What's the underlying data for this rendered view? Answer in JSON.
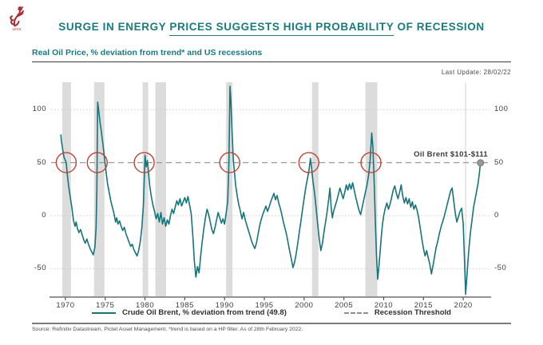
{
  "header": {
    "logo_name": "pictet-lion-crest",
    "logo_year": "1805",
    "title_pre": "SURGE IN ENERGY ",
    "title_underline": "PRICES SUGGESTS HIGH PROBABILITY",
    "title_post": " OF RECESSION"
  },
  "subtitle": "Real Oil Price, % deviation from trend* and US recessions",
  "last_update": "Last Update: 28/02/22",
  "annotation": "Oil Brent $101-$111",
  "legend": [
    {
      "swatch": "teal-solid-line",
      "label": "Crude Oil Brent, % deviation from trend (49.8)"
    },
    {
      "swatch": "gray-dashed-line",
      "label": "Recession Threshold"
    }
  ],
  "source": "Source: Refinitiv Datastream, Pictet Asset Management. *trend is based on a HP filter. As of 28th February 2022.",
  "colors": {
    "title_teal": "#1a7a7e",
    "line_teal": "#17747a",
    "circle_red": "#bd4237",
    "recession_band": "#dcdcdc",
    "threshold_gray": "#9a9a9a",
    "gridline_gray": "#cccccc",
    "axis_gray": "#555555",
    "end_dot_gray": "#999999",
    "logo_red": "#a8323a"
  },
  "chart_data": {
    "type": "line",
    "title": "Real Oil Price, % deviation from trend* and US recessions",
    "xlabel": "",
    "ylabel": "% deviation from trend",
    "grid": "horizontal-dotted",
    "legend_position": "bottom-center",
    "xlim": [
      1968.2,
      2023.3
    ],
    "ylim": [
      -76.8,
      128
    ],
    "y_ticks": [
      100,
      50,
      0,
      -50
    ],
    "x_ticks": [
      1970,
      1975,
      1980,
      1985,
      1990,
      1995,
      2000,
      2005,
      2010,
      2015,
      2020
    ],
    "threshold_value": 50,
    "marker_line_year": 2020.3,
    "recessions": [
      [
        1969.6,
        1970.7
      ],
      [
        1973.6,
        1974.9
      ],
      [
        1979.7,
        1980.4
      ],
      [
        1981.3,
        1982.65
      ],
      [
        1990.2,
        1991.0
      ],
      [
        2001.0,
        2001.8
      ],
      [
        2007.7,
        2009.2
      ]
    ],
    "circled_points": {
      "value": 50,
      "years": [
        1970.1,
        1974.0,
        1979.9,
        1990.65,
        2000.6,
        2008.4
      ]
    },
    "last_point": {
      "year": 2022.17,
      "value": 49.8
    },
    "series": [
      {
        "name": "Crude Oil Brent, % deviation from trend",
        "points": [
          [
            1969.42,
            76
          ],
          [
            1969.5,
            70
          ],
          [
            1969.67,
            62
          ],
          [
            1969.83,
            55
          ],
          [
            1970.0,
            52
          ],
          [
            1970.1,
            50
          ],
          [
            1970.25,
            38
          ],
          [
            1970.4,
            28
          ],
          [
            1970.6,
            18
          ],
          [
            1970.8,
            8
          ],
          [
            1971.0,
            -4
          ],
          [
            1971.2,
            -10
          ],
          [
            1971.35,
            -6
          ],
          [
            1971.5,
            -12
          ],
          [
            1971.7,
            -16
          ],
          [
            1971.9,
            -13
          ],
          [
            1972.1,
            -18
          ],
          [
            1972.3,
            -23
          ],
          [
            1972.5,
            -26
          ],
          [
            1972.7,
            -22
          ],
          [
            1972.9,
            -27
          ],
          [
            1973.1,
            -31
          ],
          [
            1973.3,
            -34
          ],
          [
            1973.5,
            -37
          ],
          [
            1973.7,
            -30
          ],
          [
            1973.85,
            -12
          ],
          [
            1973.95,
            25
          ],
          [
            1974.05,
            107
          ],
          [
            1974.2,
            98
          ],
          [
            1974.35,
            88
          ],
          [
            1974.5,
            80
          ],
          [
            1974.7,
            68
          ],
          [
            1974.9,
            55
          ],
          [
            1975.1,
            42
          ],
          [
            1975.3,
            30
          ],
          [
            1975.5,
            22
          ],
          [
            1975.7,
            14
          ],
          [
            1975.9,
            8
          ],
          [
            1976.1,
            2
          ],
          [
            1976.3,
            -6
          ],
          [
            1976.45,
            -2
          ],
          [
            1976.6,
            -8
          ],
          [
            1976.8,
            -5
          ],
          [
            1977.0,
            -10
          ],
          [
            1977.2,
            -14
          ],
          [
            1977.4,
            -11
          ],
          [
            1977.6,
            -17
          ],
          [
            1977.8,
            -21
          ],
          [
            1978.0,
            -25
          ],
          [
            1978.2,
            -29
          ],
          [
            1978.4,
            -27
          ],
          [
            1978.6,
            -32
          ],
          [
            1978.8,
            -35
          ],
          [
            1979.0,
            -38
          ],
          [
            1979.2,
            -33
          ],
          [
            1979.4,
            -25
          ],
          [
            1979.6,
            -12
          ],
          [
            1979.8,
            10
          ],
          [
            1980.0,
            57
          ],
          [
            1980.15,
            46
          ],
          [
            1980.3,
            52
          ],
          [
            1980.45,
            40
          ],
          [
            1980.6,
            28
          ],
          [
            1980.8,
            18
          ],
          [
            1981.0,
            10
          ],
          [
            1981.2,
            4
          ],
          [
            1981.4,
            -3
          ],
          [
            1981.6,
            2
          ],
          [
            1981.8,
            -6
          ],
          [
            1982.0,
            3
          ],
          [
            1982.2,
            -8
          ],
          [
            1982.4,
            -2
          ],
          [
            1982.6,
            -10
          ],
          [
            1982.8,
            -4
          ],
          [
            1983.0,
            -8
          ],
          [
            1983.2,
            0
          ],
          [
            1983.4,
            6
          ],
          [
            1983.6,
            2
          ],
          [
            1983.8,
            8
          ],
          [
            1984.0,
            14
          ],
          [
            1984.2,
            10
          ],
          [
            1984.4,
            16
          ],
          [
            1984.6,
            9
          ],
          [
            1984.8,
            13
          ],
          [
            1985.0,
            17
          ],
          [
            1985.2,
            12
          ],
          [
            1985.4,
            18
          ],
          [
            1985.6,
            10
          ],
          [
            1985.8,
            2
          ],
          [
            1986.0,
            -18
          ],
          [
            1986.2,
            -42
          ],
          [
            1986.4,
            -58
          ],
          [
            1986.6,
            -48
          ],
          [
            1986.8,
            -54
          ],
          [
            1987.0,
            -38
          ],
          [
            1987.2,
            -24
          ],
          [
            1987.4,
            -12
          ],
          [
            1987.6,
            -2
          ],
          [
            1987.8,
            6
          ],
          [
            1988.0,
            1
          ],
          [
            1988.2,
            -6
          ],
          [
            1988.4,
            -13
          ],
          [
            1988.6,
            -17
          ],
          [
            1988.8,
            -11
          ],
          [
            1989.0,
            -4
          ],
          [
            1989.2,
            3
          ],
          [
            1989.4,
            -2
          ],
          [
            1989.6,
            -7
          ],
          [
            1989.8,
            -3
          ],
          [
            1990.0,
            -8
          ],
          [
            1990.2,
            2
          ],
          [
            1990.4,
            14
          ],
          [
            1990.55,
            50
          ],
          [
            1990.68,
            122
          ],
          [
            1990.8,
            108
          ],
          [
            1990.95,
            78
          ],
          [
            1991.1,
            52
          ],
          [
            1991.25,
            40
          ],
          [
            1991.4,
            28
          ],
          [
            1991.6,
            18
          ],
          [
            1991.8,
            10
          ],
          [
            1992.0,
            4
          ],
          [
            1992.2,
            -3
          ],
          [
            1992.4,
            3
          ],
          [
            1992.6,
            -4
          ],
          [
            1992.8,
            -9
          ],
          [
            1993.0,
            -14
          ],
          [
            1993.2,
            -19
          ],
          [
            1993.4,
            -24
          ],
          [
            1993.6,
            -28
          ],
          [
            1993.8,
            -31
          ],
          [
            1994.0,
            -26
          ],
          [
            1994.2,
            -18
          ],
          [
            1994.4,
            -10
          ],
          [
            1994.6,
            -4
          ],
          [
            1994.8,
            1
          ],
          [
            1995.0,
            5
          ],
          [
            1995.2,
            9
          ],
          [
            1995.4,
            4
          ],
          [
            1995.6,
            8
          ],
          [
            1995.8,
            13
          ],
          [
            1996.0,
            17
          ],
          [
            1996.2,
            21
          ],
          [
            1996.4,
            15
          ],
          [
            1996.6,
            19
          ],
          [
            1996.8,
            12
          ],
          [
            1997.0,
            7
          ],
          [
            1997.2,
            1
          ],
          [
            1997.4,
            -6
          ],
          [
            1997.6,
            -12
          ],
          [
            1997.8,
            -18
          ],
          [
            1998.0,
            -26
          ],
          [
            1998.2,
            -34
          ],
          [
            1998.4,
            -41
          ],
          [
            1998.6,
            -49
          ],
          [
            1998.8,
            -44
          ],
          [
            1999.0,
            -36
          ],
          [
            1999.2,
            -26
          ],
          [
            1999.4,
            -15
          ],
          [
            1999.6,
            -5
          ],
          [
            1999.8,
            6
          ],
          [
            2000.0,
            16
          ],
          [
            2000.2,
            26
          ],
          [
            2000.4,
            34
          ],
          [
            2000.6,
            42
          ],
          [
            2000.8,
            54
          ],
          [
            2000.95,
            44
          ],
          [
            2001.1,
            33
          ],
          [
            2001.3,
            22
          ],
          [
            2001.5,
            8
          ],
          [
            2001.7,
            -8
          ],
          [
            2001.9,
            -22
          ],
          [
            2002.1,
            -33
          ],
          [
            2002.3,
            -26
          ],
          [
            2002.5,
            -15
          ],
          [
            2002.7,
            -6
          ],
          [
            2002.9,
            4
          ],
          [
            2003.1,
            16
          ],
          [
            2003.25,
            26
          ],
          [
            2003.4,
            8
          ],
          [
            2003.55,
            -2
          ],
          [
            2003.7,
            4
          ],
          [
            2003.9,
            9
          ],
          [
            2004.1,
            14
          ],
          [
            2004.3,
            20
          ],
          [
            2004.5,
            26
          ],
          [
            2004.7,
            21
          ],
          [
            2004.9,
            16
          ],
          [
            2005.1,
            22
          ],
          [
            2005.3,
            29
          ],
          [
            2005.5,
            24
          ],
          [
            2005.7,
            30
          ],
          [
            2005.9,
            25
          ],
          [
            2006.1,
            31
          ],
          [
            2006.3,
            24
          ],
          [
            2006.5,
            17
          ],
          [
            2006.7,
            11
          ],
          [
            2006.9,
            5
          ],
          [
            2007.1,
            1
          ],
          [
            2007.3,
            8
          ],
          [
            2007.5,
            15
          ],
          [
            2007.7,
            22
          ],
          [
            2007.9,
            29
          ],
          [
            2008.1,
            38
          ],
          [
            2008.3,
            52
          ],
          [
            2008.5,
            78
          ],
          [
            2008.65,
            64
          ],
          [
            2008.8,
            34
          ],
          [
            2008.95,
            -4
          ],
          [
            2009.1,
            -38
          ],
          [
            2009.25,
            -60
          ],
          [
            2009.4,
            -48
          ],
          [
            2009.55,
            -34
          ],
          [
            2009.7,
            -20
          ],
          [
            2009.85,
            -8
          ],
          [
            2010.0,
            0
          ],
          [
            2010.2,
            7
          ],
          [
            2010.4,
            12
          ],
          [
            2010.6,
            6
          ],
          [
            2010.8,
            11
          ],
          [
            2011.0,
            17
          ],
          [
            2011.2,
            24
          ],
          [
            2011.4,
            28
          ],
          [
            2011.6,
            21
          ],
          [
            2011.8,
            16
          ],
          [
            2012.0,
            22
          ],
          [
            2012.2,
            29
          ],
          [
            2012.4,
            18
          ],
          [
            2012.6,
            12
          ],
          [
            2012.8,
            17
          ],
          [
            2013.0,
            11
          ],
          [
            2013.2,
            16
          ],
          [
            2013.4,
            8
          ],
          [
            2013.6,
            13
          ],
          [
            2013.8,
            6
          ],
          [
            2014.0,
            10
          ],
          [
            2014.2,
            5
          ],
          [
            2014.4,
            -2
          ],
          [
            2014.6,
            -12
          ],
          [
            2014.8,
            -22
          ],
          [
            2015.0,
            -31
          ],
          [
            2015.2,
            -38
          ],
          [
            2015.4,
            -33
          ],
          [
            2015.6,
            -40
          ],
          [
            2015.8,
            -46
          ],
          [
            2016.0,
            -55
          ],
          [
            2016.2,
            -47
          ],
          [
            2016.4,
            -38
          ],
          [
            2016.6,
            -30
          ],
          [
            2016.8,
            -24
          ],
          [
            2017.0,
            -17
          ],
          [
            2017.2,
            -11
          ],
          [
            2017.4,
            -6
          ],
          [
            2017.6,
            -1
          ],
          [
            2017.8,
            5
          ],
          [
            2018.0,
            11
          ],
          [
            2018.2,
            17
          ],
          [
            2018.4,
            23
          ],
          [
            2018.6,
            26
          ],
          [
            2018.8,
            14
          ],
          [
            2019.0,
            2
          ],
          [
            2019.2,
            -6
          ],
          [
            2019.4,
            -1
          ],
          [
            2019.6,
            4
          ],
          [
            2019.8,
            7
          ],
          [
            2020.0,
            -8
          ],
          [
            2020.15,
            -40
          ],
          [
            2020.3,
            -74
          ],
          [
            2020.45,
            -58
          ],
          [
            2020.6,
            -42
          ],
          [
            2020.75,
            -28
          ],
          [
            2020.9,
            -16
          ],
          [
            2021.1,
            -4
          ],
          [
            2021.3,
            8
          ],
          [
            2021.5,
            16
          ],
          [
            2021.7,
            24
          ],
          [
            2021.85,
            30
          ],
          [
            2022.0,
            38
          ],
          [
            2022.17,
            49.8
          ]
        ]
      }
    ]
  }
}
